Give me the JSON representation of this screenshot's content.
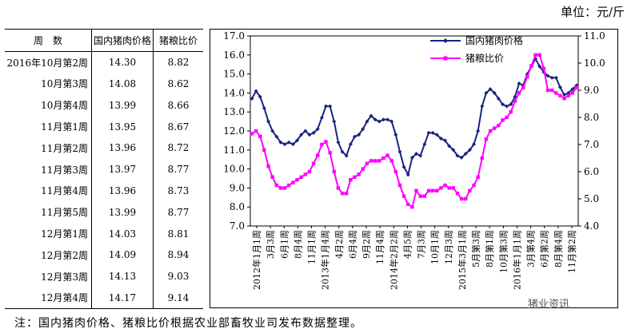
{
  "unit_label": "单位：元/斤",
  "note": "注：国内猪肉价格、猪粮比价根据农业部畜牧业司发布数据整理。",
  "watermark": "猪业资讯",
  "table": {
    "headers": [
      "周　数",
      "国内猪肉价格",
      "猪粮比价"
    ],
    "rows": [
      [
        "2016年10月第2周",
        "14.30",
        "8.82"
      ],
      [
        "10月第3周",
        "14.08",
        "8.62"
      ],
      [
        "10月第4周",
        "13.99",
        "8.66"
      ],
      [
        "11月第1周",
        "13.95",
        "8.67"
      ],
      [
        "11月第2周",
        "13.96",
        "8.72"
      ],
      [
        "11月第3周",
        "13.97",
        "8.77"
      ],
      [
        "11月第4周",
        "13.96",
        "8.73"
      ],
      [
        "11月第5周",
        "13.99",
        "8.77"
      ],
      [
        "12月第1周",
        "14.03",
        "8.81"
      ],
      [
        "12月第2周",
        "14.09",
        "8.94"
      ],
      [
        "12月第3周",
        "14.13",
        "9.03"
      ],
      [
        "12月第4周",
        "14.17",
        "9.14"
      ]
    ]
  },
  "colors": {
    "pork": "#1a237e",
    "ratio": "#ff00ff"
  },
  "chart_data": {
    "type": "line",
    "xlabels": [
      "2012年1月1周",
      "3月3周",
      "6月1周",
      "8月4周",
      "11月1周",
      "2013年1月4周",
      "4月2周",
      "6月4周",
      "9月2周",
      "11月4周",
      "2014年2月2周",
      "4月5周",
      "7月3周",
      "10月1周",
      "12月3周",
      "2015年3月1周",
      "5月第3周",
      "8月第1周",
      "10月第3周",
      "2016年1月1周",
      "3月第4周",
      "6月第2周",
      "8月第4周",
      "11月第2周"
    ],
    "ylim_left": [
      7.0,
      17.0
    ],
    "ylim_right": [
      4.0,
      11.0
    ],
    "yticks_left": [
      "7.0",
      "8.0",
      "9.0",
      "10.0",
      "11.0",
      "12.0",
      "13.0",
      "14.0",
      "15.0",
      "16.0",
      "17.0"
    ],
    "yticks_right": [
      "4.0",
      "5.0",
      "6.0",
      "7.0",
      "8.0",
      "9.0",
      "10.0",
      "11.0"
    ],
    "legend_position": "top",
    "series": [
      {
        "name": "国内猪肉价格",
        "axis": "left",
        "values": [
          13.7,
          14.1,
          13.8,
          13.2,
          12.5,
          12.0,
          11.7,
          11.4,
          11.3,
          11.4,
          11.3,
          11.5,
          11.8,
          12.0,
          11.8,
          11.9,
          12.1,
          12.7,
          13.3,
          13.3,
          12.5,
          11.4,
          10.9,
          10.7,
          11.3,
          11.7,
          11.8,
          12.1,
          12.5,
          12.8,
          12.6,
          12.5,
          12.6,
          12.6,
          12.5,
          11.8,
          10.9,
          10.1,
          9.7,
          10.6,
          10.8,
          10.7,
          11.3,
          11.9,
          11.9,
          11.8,
          11.6,
          11.5,
          11.2,
          11.0,
          10.7,
          10.6,
          10.8,
          11.0,
          11.3,
          12.0,
          13.3,
          14.0,
          14.2,
          14.0,
          13.7,
          13.4,
          13.3,
          13.4,
          13.8,
          14.5,
          14.4,
          15.0,
          15.4,
          15.8,
          15.4,
          15.1,
          14.9,
          14.8,
          14.8,
          14.3,
          13.9,
          14.0,
          14.2,
          14.4
        ]
      },
      {
        "name": "猪粮比价",
        "axis": "right",
        "values": [
          7.4,
          7.5,
          7.3,
          6.8,
          6.2,
          5.8,
          5.5,
          5.4,
          5.4,
          5.5,
          5.6,
          5.7,
          5.8,
          5.9,
          6.0,
          6.3,
          6.6,
          7.0,
          7.1,
          6.7,
          6.0,
          5.4,
          5.2,
          5.2,
          5.7,
          5.8,
          5.9,
          6.1,
          6.3,
          6.4,
          6.4,
          6.4,
          6.5,
          6.6,
          6.4,
          6.0,
          5.5,
          5.1,
          4.8,
          4.7,
          5.3,
          5.1,
          5.1,
          5.3,
          5.3,
          5.3,
          5.4,
          5.5,
          5.4,
          5.4,
          5.2,
          5.0,
          5.0,
          5.3,
          5.5,
          5.8,
          6.5,
          7.2,
          7.5,
          7.6,
          7.7,
          7.9,
          8.0,
          8.2,
          8.6,
          8.9,
          9.1,
          9.5,
          9.9,
          10.3,
          10.3,
          9.8,
          9.0,
          9.0,
          8.9,
          8.8,
          8.7,
          8.8,
          8.9,
          9.1
        ]
      }
    ]
  }
}
